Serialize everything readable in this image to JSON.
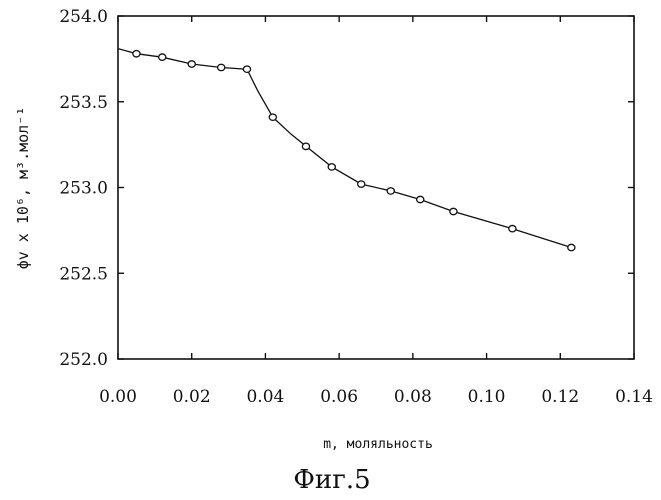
{
  "chart_data": {
    "type": "scatter",
    "xlabel": "m, моляльность",
    "ylabel": "ϕ<sub>v</sub>x10<sup>6</sup>, м<sup>3</sup>.мол<sup>-1</sup>",
    "ylabel_text": "ϕv x 10⁶, м³.мол⁻¹",
    "caption": "Фиг.5",
    "xlim": [
      0.0,
      0.14
    ],
    "ylim": [
      252.0,
      254.0
    ],
    "x_ticks": [
      "0.00",
      "0.02",
      "0.04",
      "0.06",
      "0.08",
      "0.10",
      "0.12",
      "0.14"
    ],
    "y_ticks": [
      "252.0",
      "252.5",
      "253.0",
      "253.5",
      "254.0"
    ],
    "grid": false,
    "series": [
      {
        "points": [
          {
            "x": 0.005,
            "y": 253.78
          },
          {
            "x": 0.012,
            "y": 253.76
          },
          {
            "x": 0.02,
            "y": 253.72
          },
          {
            "x": 0.028,
            "y": 253.7
          },
          {
            "x": 0.035,
            "y": 253.69
          },
          {
            "x": 0.042,
            "y": 253.41
          },
          {
            "x": 0.051,
            "y": 253.24
          },
          {
            "x": 0.058,
            "y": 253.12
          },
          {
            "x": 0.066,
            "y": 253.02
          },
          {
            "x": 0.074,
            "y": 252.98
          },
          {
            "x": 0.082,
            "y": 252.93
          },
          {
            "x": 0.091,
            "y": 252.86
          },
          {
            "x": 0.107,
            "y": 252.76
          },
          {
            "x": 0.123,
            "y": 252.65
          }
        ],
        "curve": [
          {
            "x": 0.0,
            "y": 253.81
          },
          {
            "x": 0.005,
            "y": 253.78
          },
          {
            "x": 0.012,
            "y": 253.76
          },
          {
            "x": 0.02,
            "y": 253.72
          },
          {
            "x": 0.028,
            "y": 253.7
          },
          {
            "x": 0.035,
            "y": 253.69
          },
          {
            "x": 0.038,
            "y": 253.56
          },
          {
            "x": 0.042,
            "y": 253.41
          },
          {
            "x": 0.047,
            "y": 253.31
          },
          {
            "x": 0.051,
            "y": 253.24
          },
          {
            "x": 0.058,
            "y": 253.12
          },
          {
            "x": 0.066,
            "y": 253.02
          },
          {
            "x": 0.074,
            "y": 252.98
          },
          {
            "x": 0.082,
            "y": 252.93
          },
          {
            "x": 0.091,
            "y": 252.86
          },
          {
            "x": 0.107,
            "y": 252.76
          },
          {
            "x": 0.123,
            "y": 252.65
          }
        ]
      }
    ],
    "colors": {
      "ink": "#111111",
      "background": "#ffffff"
    }
  }
}
